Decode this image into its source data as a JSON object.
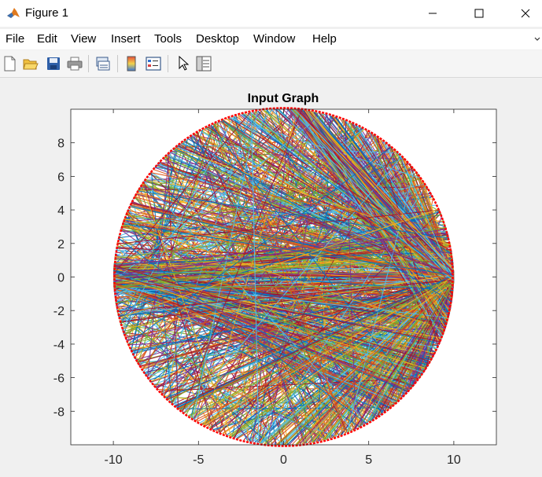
{
  "window": {
    "title": "Figure 1"
  },
  "menu": {
    "items": [
      "File",
      "Edit",
      "View",
      "Insert",
      "Tools",
      "Desktop",
      "Window",
      "Help"
    ]
  },
  "toolbar": {
    "icons": [
      "new-figure-icon",
      "open-file-icon",
      "save-icon",
      "print-icon",
      "link-plot-icon",
      "insert-colorbar-icon",
      "insert-legend-icon",
      "edit-plot-pointer-icon",
      "property-inspector-icon"
    ]
  },
  "colors": {
    "circle": "#ff0000",
    "line_palette": [
      "#0072bd",
      "#d95319",
      "#edb120",
      "#7e2f8e",
      "#77ac30",
      "#4dbeee",
      "#a2142f"
    ]
  },
  "chart_data": {
    "type": "line",
    "title": "Input Graph",
    "xlabel": "",
    "ylabel": "",
    "xlim": [
      -12.5,
      12.5
    ],
    "ylim": [
      -10,
      10
    ],
    "xticks": [
      -10,
      -5,
      0,
      5,
      10
    ],
    "yticks": [
      -8,
      -6,
      -4,
      -2,
      0,
      2,
      4,
      6,
      8
    ],
    "grid": false,
    "circle": {
      "center": [
        0,
        0
      ],
      "radius": 10,
      "color": "#ff0000"
    },
    "note_description": "Dense set of colored chords connecting points on a circle of radius 10; many chords converge at (10, 0)."
  }
}
